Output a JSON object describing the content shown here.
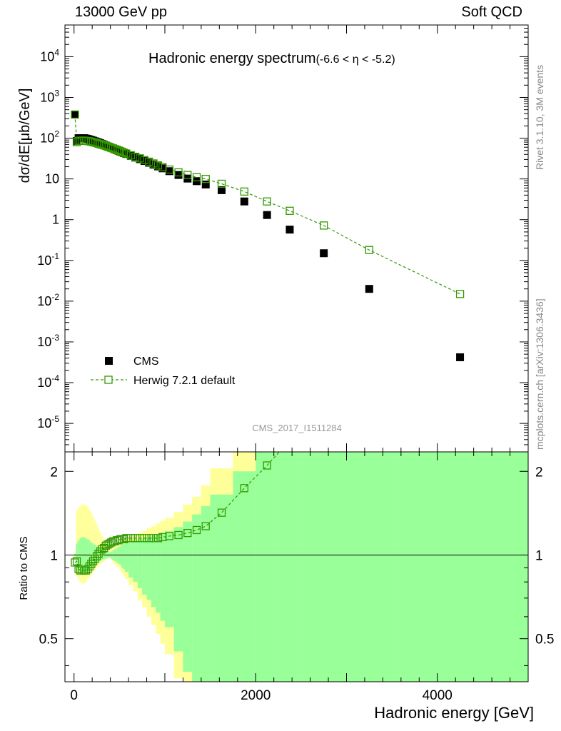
{
  "header": {
    "left": "13000 GeV pp",
    "right": "Soft QCD"
  },
  "side": {
    "top": "Rivet 3.1.10,  3M events",
    "bottom": "mcplots.cern.ch [arXiv:1306.3436]"
  },
  "colors": {
    "herwig": "#339900",
    "band_inner": "#99ff99",
    "band_outer": "#ffff99",
    "cms": "#000000"
  },
  "chart_data": [
    {
      "type": "scatter",
      "title": "Hadronic energy spectrum",
      "title_suffix": "(-6.6 < η < -5.2)",
      "xlabel": "Hadronic energy [GeV]",
      "ylabel": "dσ/dE[μb/GeV]",
      "yscale": "log",
      "xlim": [
        -100,
        5000
      ],
      "ylim": [
        2e-06,
        60000
      ],
      "ytick_labels": {
        "e4": "10^4",
        "e3": "10^3",
        "e2": "10^2",
        "e1": "10",
        "e0": "1",
        "em1": "10^-1",
        "em2": "10^-2",
        "em3": "10^-3",
        "em4": "10^-4",
        "em5": "10^-5"
      },
      "watermark": "CMS_2017_I1511284",
      "legend": {
        "position": "bottom-left",
        "cms": "CMS",
        "herwig": "Herwig 7.2.1 default"
      },
      "series": [
        {
          "name": "CMS",
          "x": [
            10,
            30,
            50,
            70,
            90,
            110,
            130,
            150,
            170,
            190,
            210,
            230,
            250,
            270,
            290,
            310,
            330,
            350,
            370,
            390,
            410,
            430,
            450,
            470,
            490,
            510,
            530,
            550,
            575,
            625,
            675,
            725,
            775,
            825,
            875,
            925,
            975,
            1050,
            1150,
            1250,
            1350,
            1450,
            1625,
            1875,
            2125,
            2375,
            2750,
            3250,
            4250
          ],
          "values": [
            380,
            85,
            100,
            100,
            100,
            100,
            98,
            96,
            93,
            90,
            87,
            84,
            81,
            78,
            75,
            72,
            69,
            66,
            63,
            61,
            58,
            56,
            53,
            51,
            49,
            47,
            45,
            43,
            41,
            37,
            33.5,
            30.5,
            27.5,
            25,
            22.5,
            20.3,
            18.2,
            15.5,
            12.5,
            10.2,
            8.8,
            7.3,
            5.3,
            2.8,
            1.3,
            0.57,
            0.15,
            0.02,
            0.00042
          ]
        },
        {
          "name": "Herwig 7.2.1 default",
          "x": [
            10,
            30,
            50,
            70,
            90,
            110,
            130,
            150,
            170,
            190,
            210,
            230,
            250,
            270,
            290,
            310,
            330,
            350,
            370,
            390,
            410,
            430,
            450,
            470,
            490,
            510,
            530,
            550,
            575,
            625,
            675,
            725,
            775,
            825,
            875,
            925,
            975,
            1050,
            1150,
            1250,
            1350,
            1450,
            1625,
            1875,
            2125,
            2375,
            2750,
            3250,
            4250
          ],
          "values": [
            380,
            80,
            86,
            87,
            87,
            87,
            86,
            85,
            84,
            82,
            80,
            78,
            76,
            73,
            71,
            69,
            67,
            65,
            62,
            60,
            58,
            56,
            54,
            52,
            50,
            48,
            46,
            44,
            42,
            38,
            35,
            32,
            29,
            26.5,
            24,
            21.5,
            19.5,
            17,
            14.5,
            12.5,
            11,
            10,
            7.6,
            4.9,
            2.8,
            1.65,
            0.72,
            0.18,
            0.015
          ]
        }
      ]
    },
    {
      "type": "scatter",
      "xlabel": "Hadronic energy [GeV]",
      "ylabel": "Ratio to CMS",
      "xlim": [
        -100,
        5000
      ],
      "ylim": [
        0.35,
        2.35
      ],
      "xticks": [
        0,
        2000,
        4000
      ],
      "xtick_labels": [
        "0",
        "2000",
        "4000"
      ],
      "yticks": [
        0.5,
        1,
        2
      ],
      "ytick_labels": [
        "0.5",
        "1",
        "2"
      ],
      "bands": {
        "edges": [
          0,
          20,
          40,
          60,
          80,
          100,
          120,
          140,
          160,
          180,
          200,
          220,
          240,
          260,
          280,
          300,
          320,
          340,
          360,
          380,
          400,
          420,
          440,
          460,
          480,
          500,
          520,
          540,
          560,
          600,
          650,
          700,
          750,
          800,
          850,
          900,
          950,
          1000,
          1100,
          1200,
          1300,
          1400,
          1500,
          1750,
          2000,
          2250,
          2500,
          3000,
          3500,
          5000
        ],
        "inner_lo": [
          0.99,
          0.9,
          0.88,
          0.86,
          0.85,
          0.85,
          0.86,
          0.87,
          0.88,
          0.9,
          0.91,
          0.92,
          0.93,
          0.94,
          0.95,
          0.96,
          0.965,
          0.97,
          0.975,
          0.98,
          0.97,
          0.96,
          0.95,
          0.94,
          0.93,
          0.92,
          0.9,
          0.89,
          0.87,
          0.83,
          0.8,
          0.76,
          0.72,
          0.69,
          0.65,
          0.62,
          0.58,
          0.55,
          0.45,
          0.38,
          0.32,
          0.3,
          0.25,
          0.2,
          0.2,
          0.2,
          0.2,
          0.2,
          0.2
        ],
        "inner_hi": [
          1.01,
          1.1,
          1.13,
          1.15,
          1.16,
          1.16,
          1.15,
          1.14,
          1.13,
          1.11,
          1.1,
          1.09,
          1.08,
          1.07,
          1.06,
          1.05,
          1.04,
          1.03,
          1.03,
          1.02,
          1.03,
          1.04,
          1.05,
          1.06,
          1.07,
          1.08,
          1.09,
          1.1,
          1.11,
          1.12,
          1.13,
          1.14,
          1.15,
          1.16,
          1.17,
          1.18,
          1.2,
          1.22,
          1.26,
          1.32,
          1.4,
          1.5,
          1.65,
          2.0,
          2.8,
          3.0,
          3.0,
          3.0,
          3.0
        ],
        "outer_lo": [
          0.98,
          0.84,
          0.82,
          0.8,
          0.79,
          0.79,
          0.8,
          0.82,
          0.83,
          0.85,
          0.87,
          0.88,
          0.9,
          0.91,
          0.93,
          0.94,
          0.95,
          0.96,
          0.97,
          0.98,
          0.96,
          0.94,
          0.93,
          0.91,
          0.9,
          0.88,
          0.86,
          0.84,
          0.82,
          0.78,
          0.74,
          0.69,
          0.65,
          0.6,
          0.56,
          0.52,
          0.48,
          0.44,
          0.36,
          0.3,
          0.28,
          0.28,
          0.2,
          0.2,
          0.2,
          0.2,
          0.2,
          0.2,
          0.2
        ],
        "outer_hi": [
          1.02,
          1.45,
          1.48,
          1.5,
          1.52,
          1.52,
          1.51,
          1.49,
          1.46,
          1.42,
          1.38,
          1.33,
          1.29,
          1.25,
          1.21,
          1.17,
          1.13,
          1.1,
          1.07,
          1.05,
          1.06,
          1.07,
          1.08,
          1.09,
          1.1,
          1.11,
          1.12,
          1.13,
          1.14,
          1.16,
          1.18,
          1.2,
          1.22,
          1.25,
          1.27,
          1.3,
          1.33,
          1.36,
          1.43,
          1.52,
          1.62,
          1.78,
          2.05,
          2.5,
          3.0,
          3.0,
          3.0,
          3.0,
          3.0
        ]
      },
      "series": [
        {
          "name": "Herwig 7.2.1 default",
          "x": [
            10,
            30,
            50,
            70,
            90,
            110,
            130,
            150,
            170,
            190,
            210,
            230,
            250,
            270,
            290,
            310,
            330,
            350,
            370,
            390,
            410,
            430,
            450,
            470,
            490,
            510,
            530,
            550,
            575,
            625,
            675,
            725,
            775,
            825,
            875,
            925,
            975,
            1050,
            1150,
            1250,
            1350,
            1450,
            1625,
            1875,
            2125
          ],
          "values": [
            0.94,
            0.95,
            0.89,
            0.88,
            0.88,
            0.88,
            0.88,
            0.89,
            0.91,
            0.93,
            0.95,
            0.97,
            0.99,
            1.01,
            1.03,
            1.05,
            1.06,
            1.08,
            1.09,
            1.1,
            1.11,
            1.12,
            1.12,
            1.13,
            1.13,
            1.14,
            1.14,
            1.14,
            1.15,
            1.15,
            1.15,
            1.15,
            1.15,
            1.15,
            1.15,
            1.15,
            1.16,
            1.17,
            1.18,
            1.2,
            1.23,
            1.27,
            1.42,
            1.74,
            2.1
          ]
        }
      ]
    }
  ]
}
